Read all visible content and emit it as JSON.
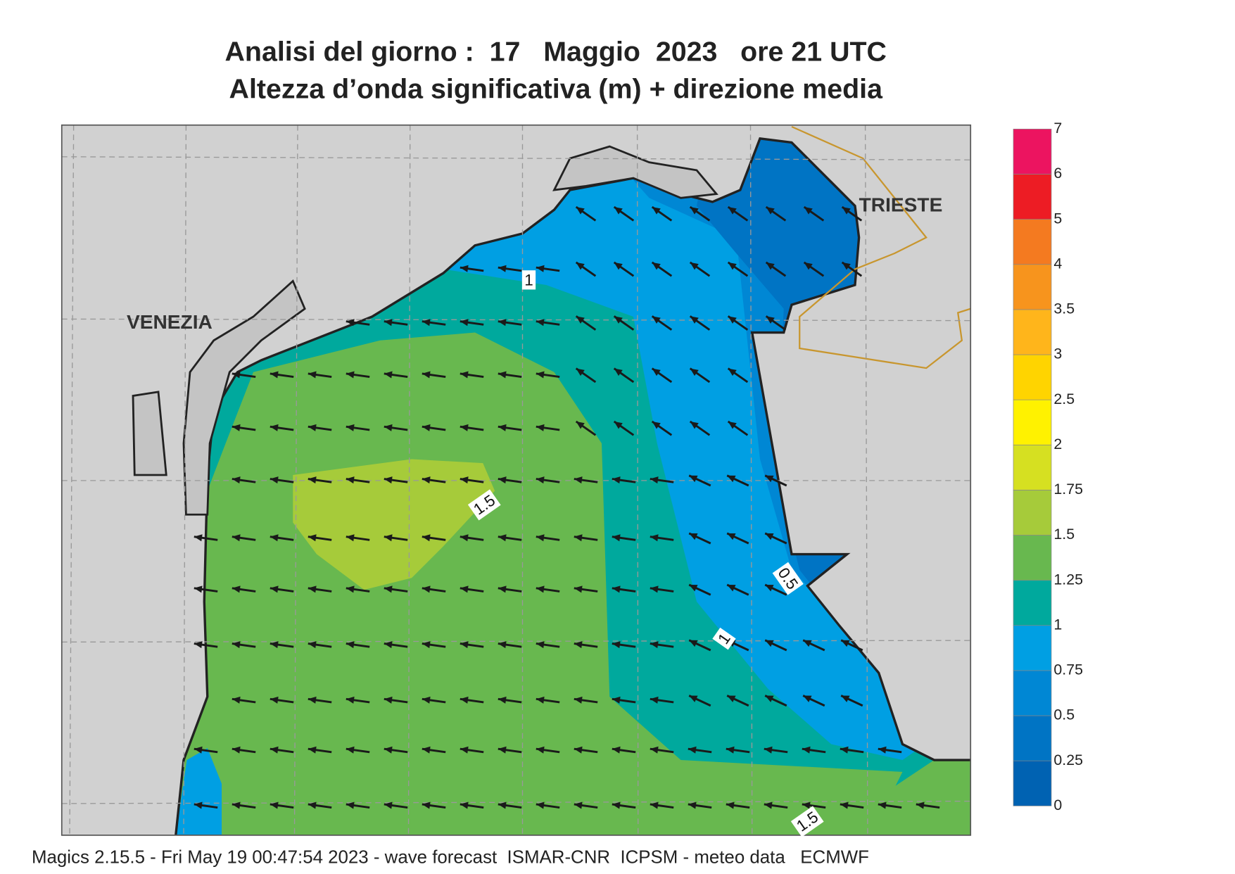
{
  "header": {
    "title": "Analisi del giorno :  17   Maggio  2023   ore 21 UTC",
    "subtitle": "Altezza d’onda significativa (m) + direzione media"
  },
  "map": {
    "cities": [
      "VENEZIA",
      "TRIESTE"
    ],
    "contour_labels": [
      "1",
      "1.5",
      "0.5",
      "1",
      "1.5"
    ]
  },
  "colorbar": {
    "levels": [
      0,
      0.25,
      0.5,
      0.75,
      1,
      1.25,
      1.5,
      1.75,
      2,
      2.5,
      3,
      3.5,
      4,
      5,
      6,
      7
    ],
    "colors": [
      "#0062b2",
      "#0074c4",
      "#0087d4",
      "#009fe3",
      "#00a99d",
      "#68b84f",
      "#a6cb3a",
      "#d6e021",
      "#fff200",
      "#ffd400",
      "#ffb51b",
      "#f7941d",
      "#f47a20",
      "#ed1c24",
      "#ec1460"
    ]
  },
  "footer": "Magics 2.15.5 - Fri May 19 00:47:54 2023 - wave forecast  ISMAR-CNR  ICPSM - meteo data   ECMWF"
}
